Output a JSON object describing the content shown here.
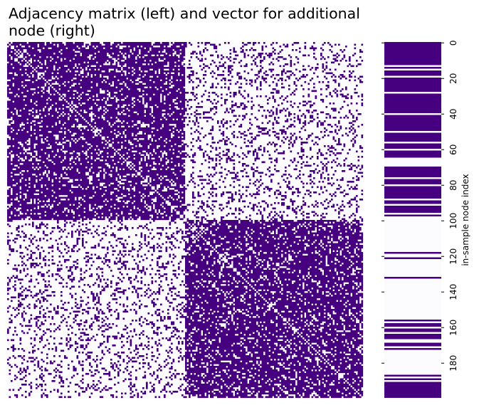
{
  "chart_data": {
    "type": "heatmap",
    "title": "Adjacency matrix (left) and vector for additional node (right)",
    "title_lines": [
      "Adjacency matrix (left) and vector for additional",
      "node (right)"
    ],
    "colors": {
      "edge": "#46007f",
      "no_edge": "#fcfbfd"
    },
    "adjacency_matrix": {
      "n_nodes": 200,
      "blocks": [
        {
          "name": "block-0",
          "start": 0,
          "end": 99
        },
        {
          "name": "block-1",
          "start": 100,
          "end": 199
        }
      ],
      "edge_probability": {
        "within_block": 0.8,
        "between_block": 0.2
      },
      "diagonal": 0,
      "x_ticks": "none",
      "y_ticks": "none"
    },
    "additional_node_vector": {
      "length": 200,
      "ylabel": "in-sample node index",
      "y_ticks": [
        0,
        20,
        40,
        60,
        80,
        100,
        120,
        140,
        160,
        180
      ],
      "y_tick_labels": [
        "0",
        "20",
        "40",
        "60",
        "80",
        "100",
        "120",
        "140",
        "160",
        "180"
      ],
      "zero_runs": [
        [
          13,
          13
        ],
        [
          15,
          15
        ],
        [
          19,
          19
        ],
        [
          28,
          28
        ],
        [
          40,
          40
        ],
        [
          50,
          50
        ],
        [
          56,
          56
        ],
        [
          60,
          60
        ],
        [
          65,
          69
        ],
        [
          76,
          76
        ],
        [
          80,
          80
        ],
        [
          88,
          88
        ],
        [
          91,
          91
        ],
        [
          96,
          96
        ],
        [
          98,
          98
        ],
        [
          99,
          117
        ],
        [
          119,
          120
        ],
        [
          122,
          131
        ],
        [
          133,
          155
        ],
        [
          157,
          157
        ],
        [
          160,
          160
        ],
        [
          163,
          163
        ],
        [
          167,
          168
        ],
        [
          171,
          171
        ],
        [
          173,
          186
        ],
        [
          188,
          188
        ],
        [
          190,
          190
        ]
      ]
    },
    "grid": false,
    "legend": "none"
  }
}
